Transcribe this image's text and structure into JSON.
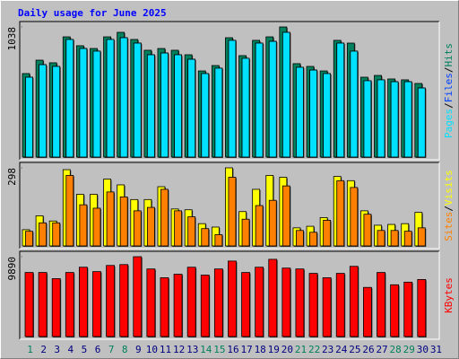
{
  "chart_data": [
    {
      "type": "bar",
      "title": "Daily usage for June 2025",
      "separator": "/",
      "ylim": [
        0,
        1038
      ],
      "yticks": [
        1038
      ],
      "series": [
        {
          "name": "Hits",
          "color": "#00805c",
          "values": [
            666,
            773,
            752,
            959,
            888,
            866,
            959,
            995,
            938,
            852,
            866,
            852,
            816,
            687,
            730,
            952,
            809,
            931,
            959,
            1038,
            745,
            723,
            687,
            931,
            909,
            637,
            651,
            623,
            616,
            587,
            null
          ]
        },
        {
          "name": "Files",
          "color": "#0040ff",
          "values": [
            637,
            737,
            723,
            938,
            866,
            845,
            938,
            952,
            909,
            816,
            830,
            816,
            780,
            666,
            709,
            931,
            788,
            909,
            923,
            995,
            716,
            694,
            666,
            909,
            845,
            609,
            616,
            601,
            601,
            551,
            null
          ]
        },
        {
          "name": "Pages",
          "color": "#00e0ff",
          "values": [
            637,
            737,
            723,
            938,
            866,
            845,
            938,
            952,
            909,
            816,
            830,
            816,
            780,
            666,
            709,
            931,
            788,
            909,
            923,
            995,
            716,
            694,
            666,
            909,
            845,
            609,
            616,
            601,
            601,
            551,
            null
          ]
        }
      ]
    },
    {
      "type": "bar",
      "separator": "/",
      "ylim": [
        0,
        298
      ],
      "yticks": [
        298
      ],
      "series": [
        {
          "name": "Visits",
          "color": "#ffff00",
          "values": [
            62,
            115,
            95,
            291,
            197,
            197,
            255,
            233,
            177,
            177,
            226,
            141,
            138,
            85,
            72,
            298,
            131,
            216,
            269,
            262,
            69,
            75,
            108,
            265,
            249,
            134,
            79,
            82,
            85,
            128,
            null
          ]
        },
        {
          "name": "Sites",
          "color": "#ff8000",
          "values": [
            56,
            88,
            88,
            269,
            157,
            144,
            206,
            187,
            134,
            147,
            216,
            134,
            111,
            66,
            43,
            262,
            102,
            154,
            174,
            229,
            59,
            52,
            98,
            249,
            223,
            121,
            59,
            59,
            56,
            69,
            null
          ]
        }
      ]
    },
    {
      "type": "bar",
      "ylim": [
        0,
        9890
      ],
      "yticks": [
        9890
      ],
      "categories": [
        "1",
        "2",
        "3",
        "4",
        "5",
        "6",
        "7",
        "8",
        "9",
        "10",
        "11",
        "12",
        "13",
        "14",
        "15",
        "16",
        "17",
        "18",
        "19",
        "20",
        "21",
        "22",
        "23",
        "24",
        "25",
        "26",
        "27",
        "28",
        "29",
        "30",
        "31"
      ],
      "weekend": [
        0,
        6,
        7,
        13,
        14,
        20,
        21,
        27,
        28
      ],
      "weekend_color": "#00805c",
      "weekday_color": "#000080",
      "series": [
        {
          "name": "KBytes",
          "color": "#ff0000",
          "values": [
            7935,
            7935,
            7174,
            7935,
            8587,
            8044,
            8805,
            8913,
            9890,
            8370,
            7283,
            7718,
            8587,
            7609,
            8370,
            9348,
            7935,
            8587,
            9565,
            8479,
            8370,
            7826,
            7283,
            7826,
            8696,
            6087,
            7935,
            6413,
            6739,
            7065,
            null
          ]
        }
      ]
    }
  ]
}
